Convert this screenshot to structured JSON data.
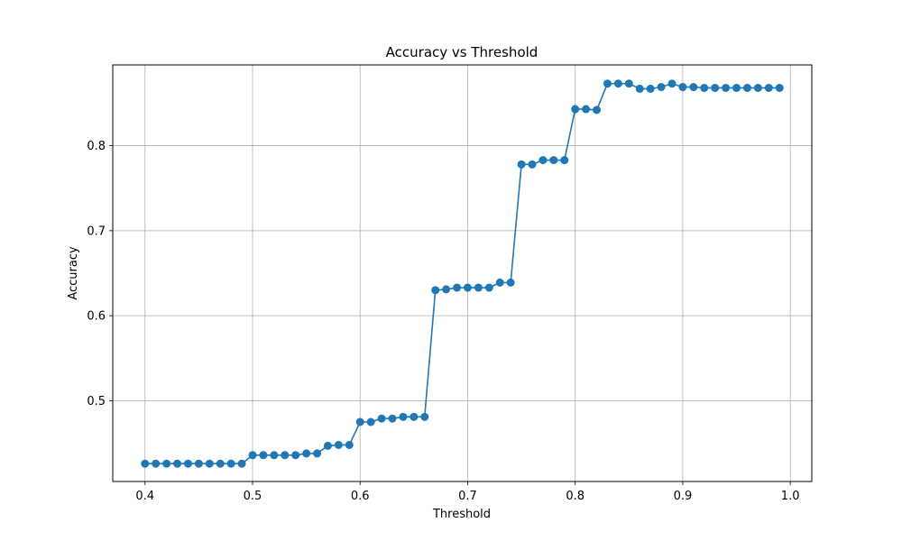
{
  "chart_data": {
    "type": "line",
    "title": "Accuracy vs Threshold",
    "xlabel": "Threshold",
    "ylabel": "Accuracy",
    "xlim": [
      0.37,
      1.02
    ],
    "ylim": [
      0.405,
      0.895
    ],
    "xticks": [
      "0.4",
      "0.5",
      "0.6",
      "0.7",
      "0.8",
      "0.9",
      "1.0"
    ],
    "yticks": [
      "0.5",
      "0.6",
      "0.7",
      "0.8"
    ],
    "grid": true,
    "line_color": "#1f77b4",
    "marker": "circle",
    "series": [
      {
        "x": [
          0.4,
          0.41,
          0.42,
          0.43,
          0.44,
          0.45,
          0.46,
          0.47,
          0.48,
          0.49,
          0.5,
          0.51,
          0.52,
          0.53,
          0.54,
          0.55,
          0.56,
          0.57,
          0.58,
          0.59,
          0.6,
          0.61,
          0.62,
          0.63,
          0.64,
          0.65,
          0.66,
          0.67,
          0.68,
          0.69,
          0.7,
          0.71,
          0.72,
          0.73,
          0.74,
          0.75,
          0.76,
          0.77,
          0.78,
          0.79,
          0.8,
          0.81,
          0.82,
          0.83,
          0.84,
          0.85,
          0.86,
          0.87,
          0.88,
          0.89,
          0.9,
          0.91,
          0.92,
          0.93,
          0.94,
          0.95,
          0.96,
          0.97,
          0.98,
          0.99
        ],
        "y": [
          0.426,
          0.426,
          0.426,
          0.426,
          0.426,
          0.426,
          0.426,
          0.426,
          0.426,
          0.426,
          0.436,
          0.436,
          0.436,
          0.436,
          0.436,
          0.438,
          0.438,
          0.447,
          0.448,
          0.448,
          0.475,
          0.475,
          0.479,
          0.479,
          0.481,
          0.481,
          0.481,
          0.63,
          0.631,
          0.633,
          0.633,
          0.633,
          0.633,
          0.639,
          0.639,
          0.778,
          0.778,
          0.783,
          0.783,
          0.783,
          0.843,
          0.843,
          0.842,
          0.873,
          0.873,
          0.873,
          0.867,
          0.867,
          0.869,
          0.873,
          0.869,
          0.869,
          0.868,
          0.868,
          0.868,
          0.868,
          0.868,
          0.868,
          0.868,
          0.868
        ]
      }
    ]
  }
}
